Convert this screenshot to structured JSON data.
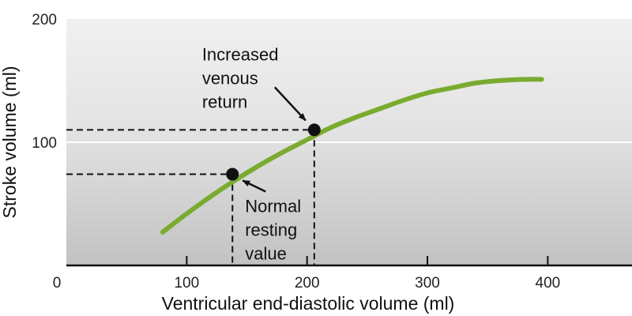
{
  "chart_data": {
    "type": "line",
    "title": "",
    "xlabel": "Ventricular end-diastolic volume (ml)",
    "ylabel": "Stroke volume (ml)",
    "xlim": [
      0,
      470
    ],
    "ylim": [
      0,
      200
    ],
    "x_ticks": [
      0,
      100,
      200,
      300,
      400
    ],
    "x_tick_labels": [
      "0",
      "100",
      "200",
      "300",
      "400"
    ],
    "y_ticks": [
      100,
      200
    ],
    "y_tick_labels": [
      "100",
      "200"
    ],
    "grid": false,
    "series": [
      {
        "color": "#7aab2f",
        "x": [
          80,
          100,
          120,
          140,
          160,
          180,
          200,
          220,
          240,
          260,
          280,
          300,
          320,
          340,
          360,
          380,
          395
        ],
        "y": [
          27,
          42,
          56,
          69,
          81,
          92,
          102,
          112,
          120,
          127,
          134,
          140,
          144,
          148,
          150,
          151,
          151
        ]
      }
    ],
    "points": [
      {
        "x": 138,
        "y": 74,
        "lines": [
          "Normal",
          "resting",
          "value"
        ]
      },
      {
        "x": 206,
        "y": 110,
        "lines": [
          "Increased",
          "venous",
          "return"
        ]
      }
    ],
    "background": {
      "top_color": "#efefef",
      "bottom_color": "#c2c2c2",
      "reference_line_y": 100
    }
  }
}
